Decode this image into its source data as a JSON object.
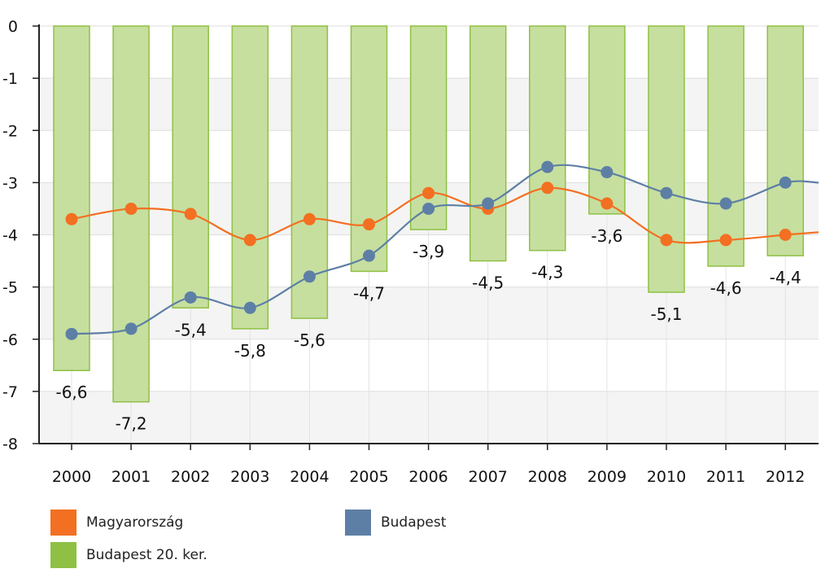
{
  "chart_data": {
    "type": "bar+line",
    "categories": [
      "2000",
      "2001",
      "2002",
      "2003",
      "2004",
      "2005",
      "2006",
      "2007",
      "2008",
      "2009",
      "2010",
      "2011",
      "2012"
    ],
    "ylim": [
      -8,
      0
    ],
    "y_ticks": [
      "0",
      "-1",
      "-2",
      "-3",
      "-4",
      "-5",
      "-6",
      "-7",
      "-8"
    ],
    "grid": true,
    "legend_position": "bottom",
    "series": [
      {
        "name": "Budapest 20. ker.",
        "kind": "bar",
        "color": "#8fc043",
        "fill": "#c6df9f",
        "values": [
          -6.6,
          -7.2,
          -5.4,
          -5.8,
          -5.6,
          -4.7,
          -3.9,
          -4.5,
          -4.3,
          -3.6,
          -5.1,
          -4.6,
          -4.4
        ],
        "labels": [
          "-6,6",
          "-7,2",
          "-5,4",
          "-5,8",
          "-5,6",
          "-4,7",
          "-3,9",
          "-4,5",
          "-4,3",
          "-3,6",
          "-5,1",
          "-4,6",
          "-4,4"
        ]
      },
      {
        "name": "Magyarország",
        "kind": "line",
        "color": "#f36f21",
        "values": [
          -3.7,
          -3.5,
          -3.6,
          -4.1,
          -3.7,
          -3.8,
          -3.2,
          -3.5,
          -3.1,
          -3.4,
          -4.1,
          -4.1,
          -4.0
        ],
        "continues_to": -3.95
      },
      {
        "name": "Budapest",
        "kind": "line",
        "color": "#5e7fa5",
        "values": [
          -5.9,
          -5.8,
          -5.2,
          -5.4,
          -4.8,
          -4.4,
          -3.5,
          -3.4,
          -2.7,
          -2.8,
          -3.2,
          -3.4,
          -3.0
        ],
        "continues_to": -3.0
      }
    ]
  }
}
